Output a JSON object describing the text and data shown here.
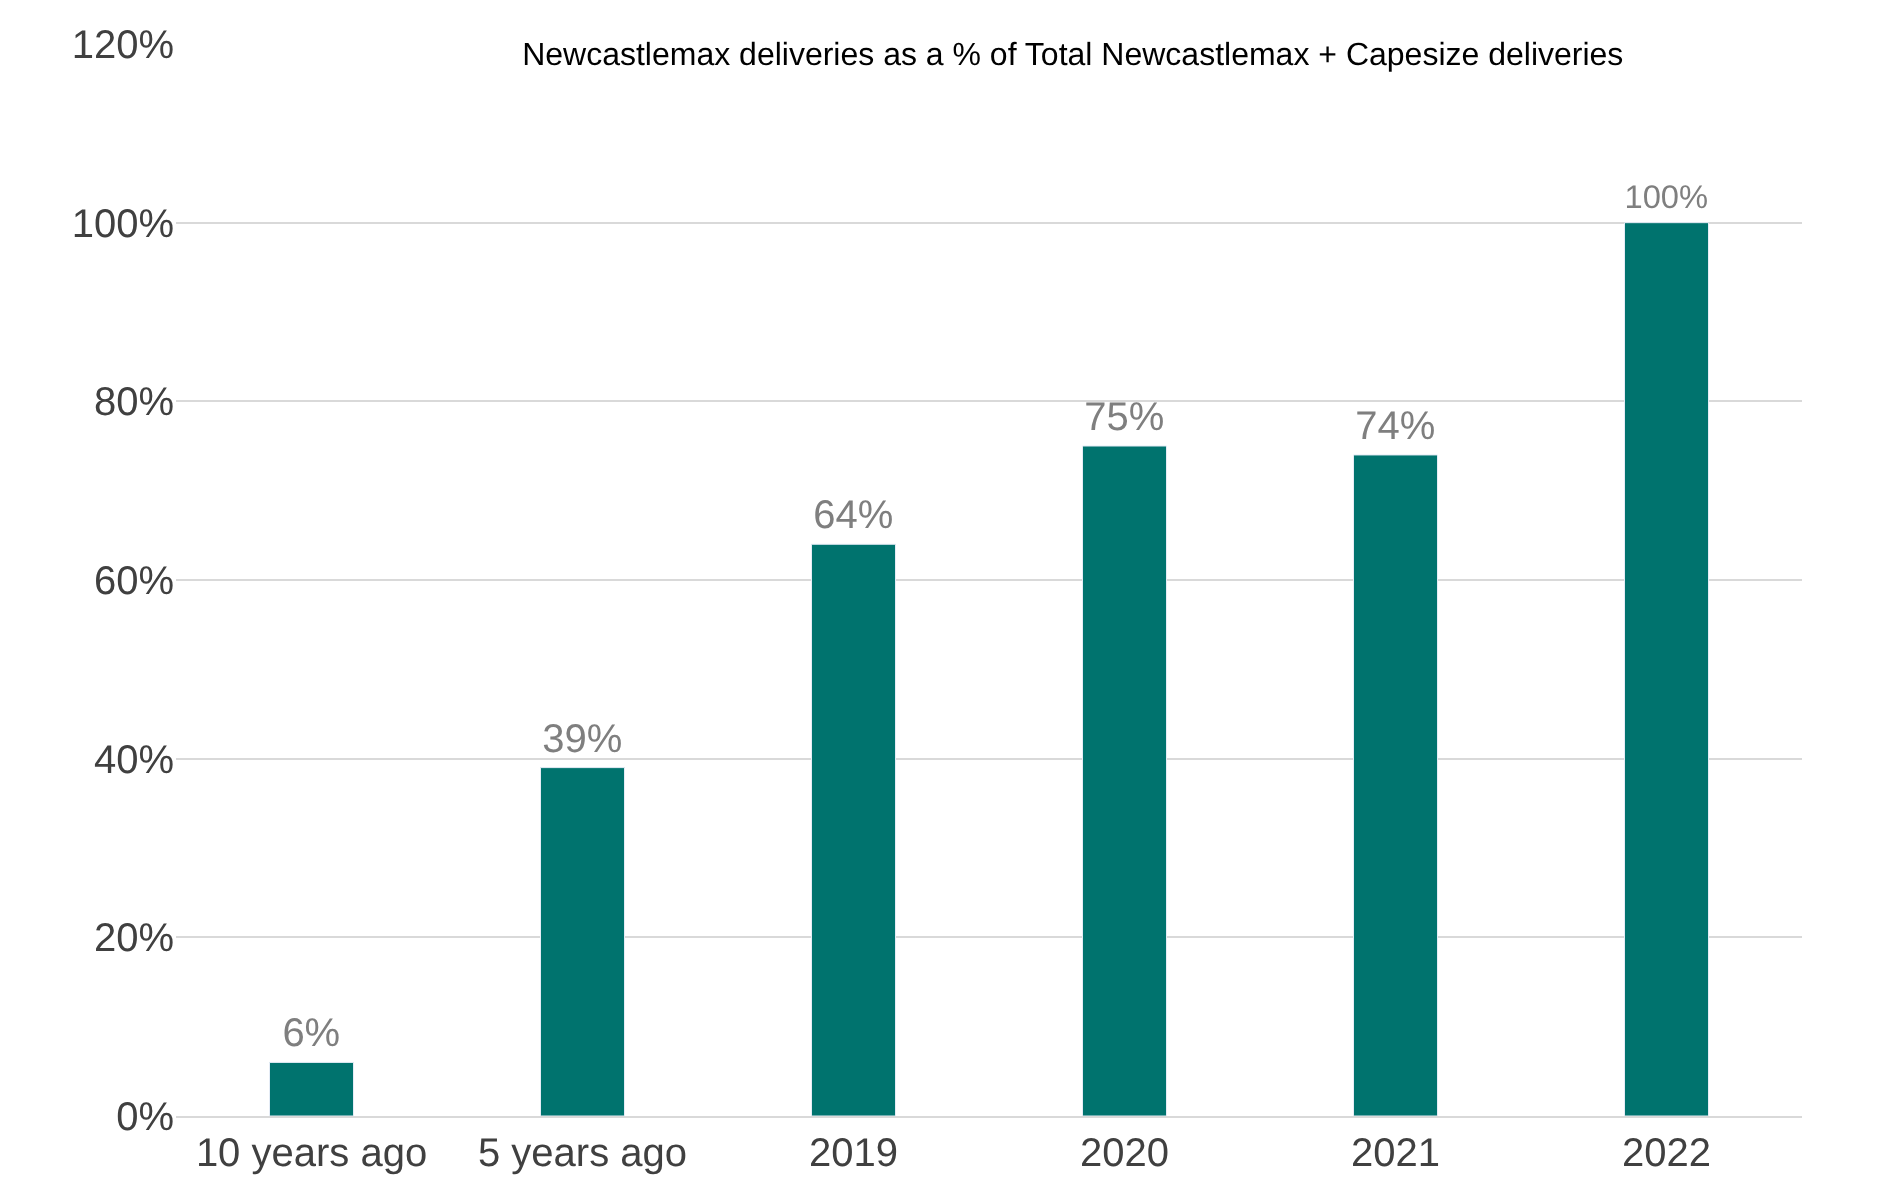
{
  "chart_data": {
    "type": "bar",
    "title": "Newcastlemax deliveries as a % of Total Newcastlemax + Capesize deliveries",
    "categories": [
      "10 years ago",
      "5 years ago",
      "2019",
      "2020",
      "2021",
      "2022"
    ],
    "values": [
      6,
      39,
      64,
      75,
      74,
      100
    ],
    "value_labels": [
      "6%",
      "39%",
      "64%",
      "75%",
      "74%",
      "100%"
    ],
    "color": "#00736e",
    "ylim": [
      0,
      120
    ],
    "yticks": [
      {
        "value": 0,
        "label": "0%"
      },
      {
        "value": 20,
        "label": "20%"
      },
      {
        "value": 40,
        "label": "40%"
      },
      {
        "value": 60,
        "label": "60%"
      },
      {
        "value": 80,
        "label": "80%"
      },
      {
        "value": 100,
        "label": "100%"
      },
      {
        "value": 120,
        "label": "120%"
      }
    ],
    "grid": "y",
    "legend": false
  }
}
